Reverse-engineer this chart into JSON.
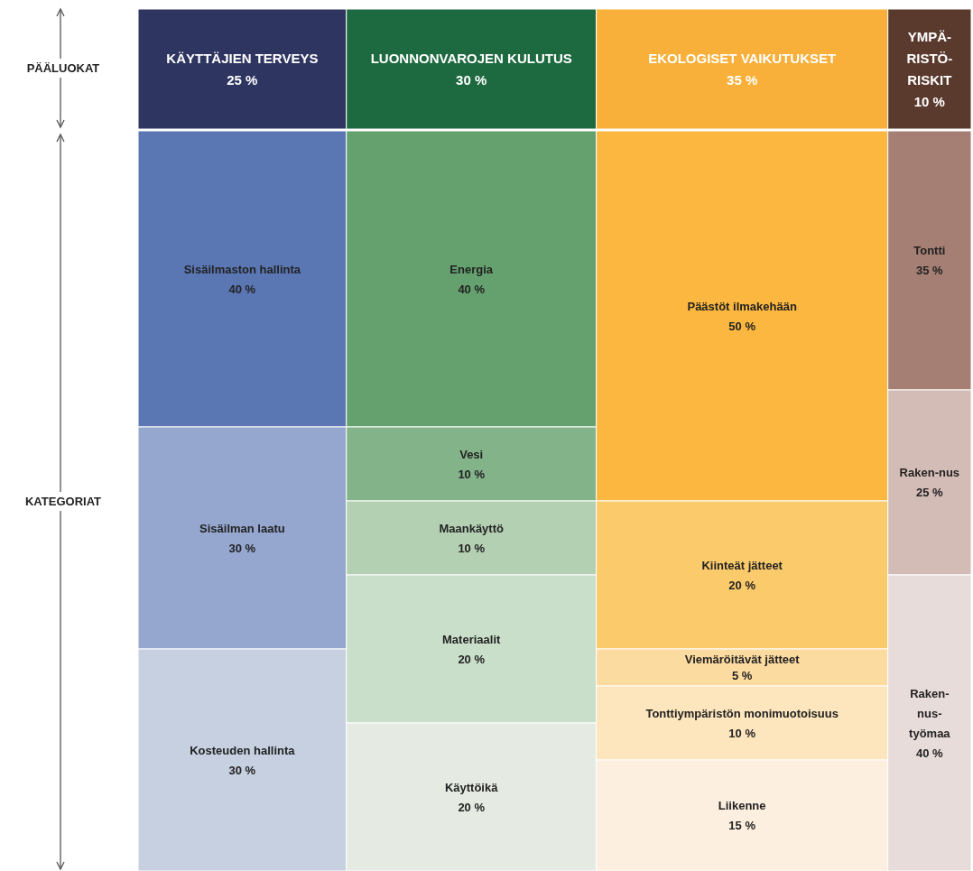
{
  "chart_data": {
    "type": "other",
    "categories": [
      "KÄYTTÄJIEN TERVEYS",
      "LUONNONVAROJEN KULUTUS",
      "EKOLOGISET VAIKUTUKSET",
      "YMPÄ-RISTÖ-RISKIT"
    ],
    "values": [
      25,
      30,
      35,
      10
    ],
    "value_labels": [
      "25 %",
      "30 %",
      "35 %",
      "10 %"
    ],
    "colors": [
      "#2e3560",
      "#1e6a40",
      "#f8b03a",
      "#5b3a2e"
    ],
    "annotations": [
      "PÄÄLUOKAT",
      "KATEGORIAT"
    ],
    "series": [
      {
        "name": "Sisäilmaston hallinta",
        "color": "#5a77b4",
        "values": [
          40,
          null,
          null,
          null
        ],
        "value_labels": [
          "40 %",
          null,
          null,
          null
        ]
      },
      {
        "name": "Sisäilman laatu",
        "color": "#95a6cf",
        "values": [
          30,
          null,
          null,
          null
        ],
        "value_labels": [
          "30 %",
          null,
          null,
          null
        ]
      },
      {
        "name": "Kosteuden hallinta",
        "color": "#c6d0e1",
        "values": [
          30,
          null,
          null,
          null
        ],
        "value_labels": [
          "30 %",
          null,
          null,
          null
        ]
      },
      {
        "name": "Energia",
        "color": "#65a16f",
        "values": [
          null,
          40,
          null,
          null
        ],
        "value_labels": [
          null,
          "40 %",
          null,
          null
        ]
      },
      {
        "name": "Vesi",
        "color": "#83b389",
        "values": [
          null,
          10,
          null,
          null
        ],
        "value_labels": [
          null,
          "10 %",
          null,
          null
        ]
      },
      {
        "name": "Maankäyttö",
        "color": "#b4d0b3",
        "values": [
          null,
          10,
          null,
          null
        ],
        "value_labels": [
          null,
          "10 %",
          null,
          null
        ]
      },
      {
        "name": "Materiaalit",
        "color": "#cadfca",
        "values": [
          null,
          20,
          null,
          null
        ],
        "value_labels": [
          null,
          "20 %",
          null,
          null
        ]
      },
      {
        "name": "Käyttöikä",
        "color": "#e5ebe3",
        "values": [
          null,
          20,
          null,
          null
        ],
        "value_labels": [
          null,
          "20 %",
          null,
          null
        ]
      },
      {
        "name": "Päästöt ilmakehään",
        "color": "#fbb73f",
        "values": [
          null,
          null,
          50,
          null
        ],
        "value_labels": [
          null,
          null,
          "50 %",
          null
        ]
      },
      {
        "name": "Kiinteät jätteet",
        "color": "#fbca6b",
        "values": [
          null,
          null,
          20,
          null
        ],
        "value_labels": [
          null,
          null,
          "20 %",
          null
        ]
      },
      {
        "name": "Viemäröitävät jätteet",
        "color": "#fcdba0",
        "values": [
          null,
          null,
          5,
          null
        ],
        "value_labels": [
          null,
          null,
          "5 %",
          null
        ]
      },
      {
        "name": "Tonttiympäristön monimuotoisuus",
        "color": "#fde5bd",
        "values": [
          null,
          null,
          10,
          null
        ],
        "value_labels": [
          null,
          null,
          "10 %",
          null
        ]
      },
      {
        "name": "Liikenne",
        "color": "#fcefdf",
        "values": [
          null,
          null,
          15,
          null
        ],
        "value_labels": [
          null,
          null,
          "15 %",
          null
        ]
      },
      {
        "name": "Tontti",
        "color": "#a57f73",
        "values": [
          null,
          null,
          null,
          35
        ],
        "value_labels": [
          null,
          null,
          null,
          "35 %"
        ]
      },
      {
        "name": "Raken-nus",
        "color": "#d4bcb6",
        "values": [
          null,
          null,
          null,
          25
        ],
        "value_labels": [
          null,
          null,
          null,
          "25 %"
        ]
      },
      {
        "name": "Raken-nus-työmaa",
        "color": "#e7dcd9",
        "values": [
          null,
          null,
          null,
          40
        ],
        "value_labels": [
          null,
          null,
          null,
          "40 %"
        ]
      }
    ]
  }
}
